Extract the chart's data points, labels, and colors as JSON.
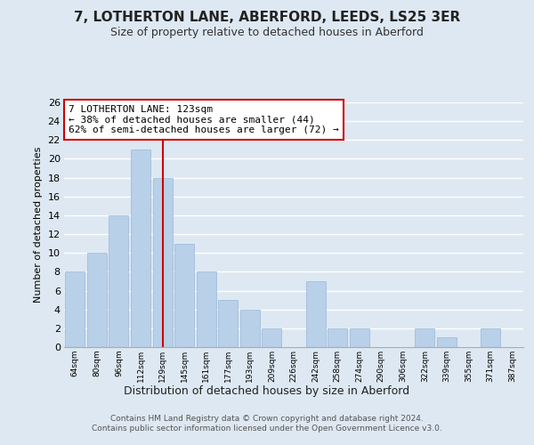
{
  "title": "7, LOTHERTON LANE, ABERFORD, LEEDS, LS25 3ER",
  "subtitle": "Size of property relative to detached houses in Aberford",
  "xlabel": "Distribution of detached houses by size in Aberford",
  "ylabel": "Number of detached properties",
  "categories": [
    "64sqm",
    "80sqm",
    "96sqm",
    "112sqm",
    "129sqm",
    "145sqm",
    "161sqm",
    "177sqm",
    "193sqm",
    "209sqm",
    "226sqm",
    "242sqm",
    "258sqm",
    "274sqm",
    "290sqm",
    "306sqm",
    "322sqm",
    "339sqm",
    "355sqm",
    "371sqm",
    "387sqm"
  ],
  "values": [
    8,
    10,
    14,
    21,
    18,
    11,
    8,
    5,
    4,
    2,
    0,
    7,
    2,
    2,
    0,
    0,
    2,
    1,
    0,
    2,
    0
  ],
  "bar_color": "#b8d0e8",
  "bar_edge_color": "#9ab8d8",
  "grid_color": "#ffffff",
  "background_color": "#dde8f2",
  "plot_bg_color": "#dde8f2",
  "vline_x_index": 4,
  "vline_color": "#cc0000",
  "annotation_title": "7 LOTHERTON LANE: 123sqm",
  "annotation_line1": "← 38% of detached houses are smaller (44)",
  "annotation_line2": "62% of semi-detached houses are larger (72) →",
  "annotation_box_color": "#ffffff",
  "annotation_border_color": "#cc0000",
  "ylim": [
    0,
    26
  ],
  "yticks": [
    0,
    2,
    4,
    6,
    8,
    10,
    12,
    14,
    16,
    18,
    20,
    22,
    24,
    26
  ],
  "footer_line1": "Contains HM Land Registry data © Crown copyright and database right 2024.",
  "footer_line2": "Contains public sector information licensed under the Open Government Licence v3.0."
}
